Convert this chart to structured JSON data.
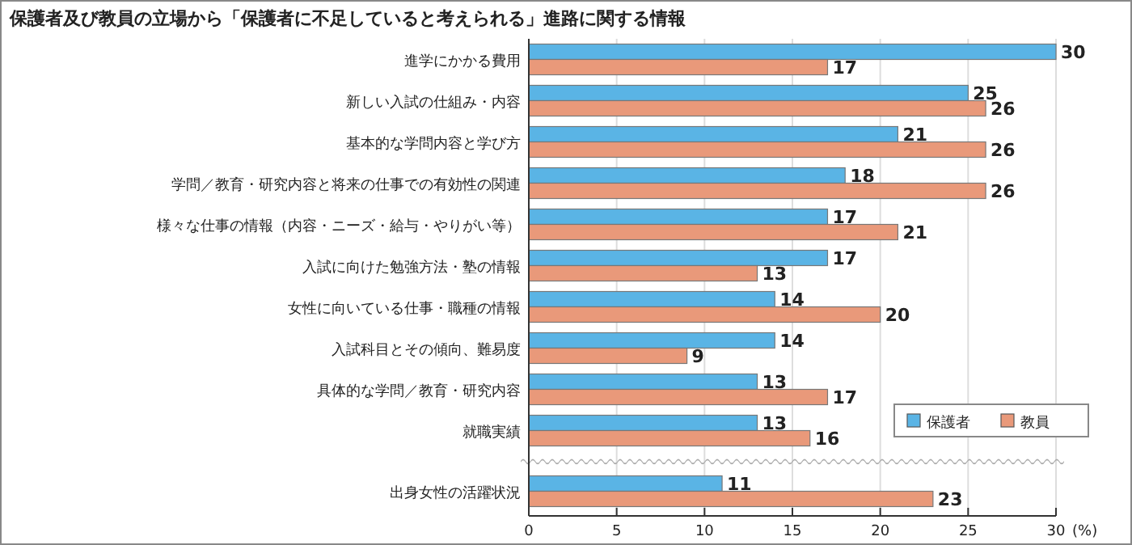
{
  "chart_data": {
    "type": "bar",
    "orientation": "horizontal",
    "title": "保護者及び教員の立場から「保護者に不足していると考えられる」進路に関する情報",
    "categories": [
      "進学にかかる費用",
      "新しい入試の仕組み・内容",
      "基本的な学問内容と学び方",
      "学問／教育・研究内容と将来の仕事での有効性の関連",
      "様々な仕事の情報（内容・ニーズ・給与・やりがい等）",
      "入試に向けた勉強方法・塾の情報",
      "女性に向いている仕事・職種の情報",
      "入試科目とその傾向、難易度",
      "具体的な学問／教育・研究内容",
      "就職実績",
      "出身女性の活躍状況"
    ],
    "series": [
      {
        "name": "保護者",
        "color": "#5ab4e5",
        "values": [
          30,
          25,
          21,
          18,
          17,
          17,
          14,
          14,
          13,
          13,
          11
        ]
      },
      {
        "name": "教員",
        "color": "#e9997a",
        "values": [
          17,
          26,
          26,
          26,
          21,
          13,
          20,
          9,
          17,
          16,
          23
        ]
      }
    ],
    "xlim": [
      0,
      30
    ],
    "xticks": [
      0,
      5,
      10,
      15,
      20,
      25,
      30
    ],
    "xlabel": "(%)",
    "grid": "x",
    "legend": "bottom right",
    "data_labels": true
  }
}
